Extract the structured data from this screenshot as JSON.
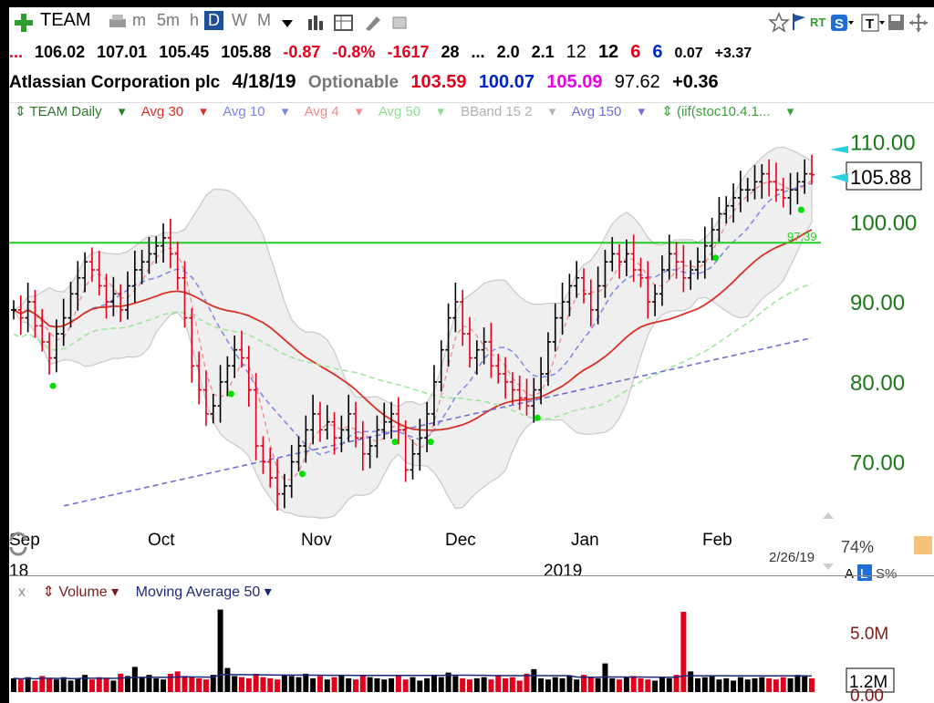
{
  "toolbar": {
    "symbol": "TEAM",
    "periods": [
      "m",
      "5m",
      "h",
      "D",
      "W",
      "M"
    ],
    "selected_period": "D",
    "rt_label": "RT"
  },
  "quote": {
    "dots": "...",
    "open": "106.02",
    "high": "107.01",
    "low": "105.45",
    "close": "105.88",
    "change": "-0.87",
    "change_pct": "-0.8%",
    "vol_change": "-1617",
    "v28": "28",
    "dots2": "...",
    "v20": "2.0",
    "v21": "2.1",
    "v12a": "12",
    "v12b": "12",
    "v6a": "6",
    "v6b": "6",
    "v007": "0.07",
    "v337": "+3.37"
  },
  "company": {
    "name": "Atlassian Corporation plc",
    "date": "4/18/19",
    "status": "Optionable",
    "p1": "103.59",
    "p2": "100.07",
    "p3": "105.09",
    "p4": "97.62",
    "p5": "+0.36"
  },
  "legend": {
    "chart": "TEAM Daily",
    "avg30": "Avg 30",
    "avg10": "Avg 10",
    "avg4": "Avg 4",
    "avg50": "Avg 50",
    "bband": "BBand 15 2",
    "avg150": "Avg 150",
    "stoc": "(iif(stoc10.4.1..."
  },
  "colors": {
    "up": "#000000",
    "down": "#e0001b",
    "avg30": "#d93025",
    "avg10": "#7a86e8",
    "avg4": "#f08a8a",
    "avg50": "#9ee89a",
    "avg150": "#6f6fd6",
    "bband": "#c8c8c8",
    "line": "#22cc22",
    "axis_text": "#1a7a1a"
  },
  "chart_data": [
    {
      "type": "candlestick",
      "title": "TEAM Daily",
      "y_ticks": [
        110,
        100,
        90,
        80,
        70
      ],
      "y_tick_labels": [
        "110.00",
        "100.00",
        "90.00",
        "80.00",
        "70.00"
      ],
      "ylim": [
        63,
        112
      ],
      "x_labels": [
        "Sep",
        "Oct",
        "Nov",
        "Dec",
        "Jan",
        "Feb"
      ],
      "year_label": "2019",
      "prev_year_label": "18",
      "date_label": "2/26/19",
      "pct_label": "74%",
      "scale_buttons": [
        "A",
        "L",
        "S%"
      ],
      "last_price": "105.88",
      "horizontal_line": {
        "value": 97.39,
        "label": "97.39"
      },
      "series": [
        {
          "name": "Daily",
          "closes": [
            89,
            88,
            90,
            87,
            85,
            83,
            86,
            88,
            91,
            93,
            95,
            94,
            92,
            90,
            91,
            89,
            92,
            94,
            95,
            96,
            97,
            98,
            96,
            93,
            88,
            82,
            79,
            76,
            77,
            80,
            82,
            84,
            83,
            79,
            72,
            70,
            68,
            66,
            67,
            70,
            72,
            74,
            76,
            74,
            75,
            73,
            74,
            76,
            73,
            71,
            72,
            74,
            75,
            76,
            74,
            69,
            71,
            73,
            76,
            80,
            84,
            88,
            90,
            86,
            83,
            84,
            85,
            82,
            81,
            80,
            79,
            78,
            77,
            79,
            81,
            85,
            88,
            90,
            92,
            93,
            91,
            89,
            92,
            95,
            96,
            95,
            96,
            94,
            93,
            90,
            91,
            94,
            96,
            95,
            93,
            94,
            95,
            97,
            99,
            101,
            102,
            103,
            104,
            104,
            105,
            106,
            105,
            104,
            103,
            104,
            105,
            106,
            105.88
          ]
        }
      ]
    },
    {
      "type": "bar",
      "title": "Volume",
      "series_label": "Moving Average 50",
      "y_ticks": [
        "5.0M",
        "0.00"
      ],
      "last_label": "1.2M",
      "values_m": [
        1.2,
        1.1,
        1.3,
        1.0,
        1.4,
        1.2,
        1.1,
        1.3,
        1.0,
        1.2,
        1.5,
        1.1,
        1.3,
        1.2,
        1.0,
        1.6,
        1.4,
        2.2,
        1.3,
        1.5,
        1.2,
        1.1,
        1.6,
        1.8,
        1.4,
        1.3,
        1.2,
        1.1,
        1.5,
        7.2,
        2.1,
        1.4,
        1.3,
        1.2,
        1.6,
        1.3,
        1.2,
        1.1,
        1.5,
        1.4,
        1.3,
        1.6,
        1.2,
        1.4,
        1.1,
        1.3,
        1.5,
        1.2,
        1.1,
        1.4,
        1.3,
        1.2,
        1.1,
        1.2,
        1.4,
        1.1,
        1.3,
        1.0,
        1.2,
        1.5,
        1.3,
        1.7,
        1.4,
        1.2,
        1.1,
        1.2,
        1.3,
        1.1,
        1.4,
        1.2,
        1.3,
        1.0,
        1.6,
        2.0,
        1.2,
        1.1,
        1.3,
        1.2,
        1.4,
        1.1,
        1.5,
        1.3,
        1.2,
        2.5,
        1.2,
        1.1,
        1.3,
        1.4,
        1.2,
        1.1,
        1.0,
        1.3,
        1.2,
        1.5,
        7.0,
        1.8,
        1.2,
        1.3,
        1.4,
        1.1,
        1.2,
        1.0,
        1.3,
        1.1,
        1.2,
        1.3,
        1.2,
        1.1,
        1.3,
        1.2,
        1.5,
        1.4,
        1.2
      ]
    }
  ]
}
